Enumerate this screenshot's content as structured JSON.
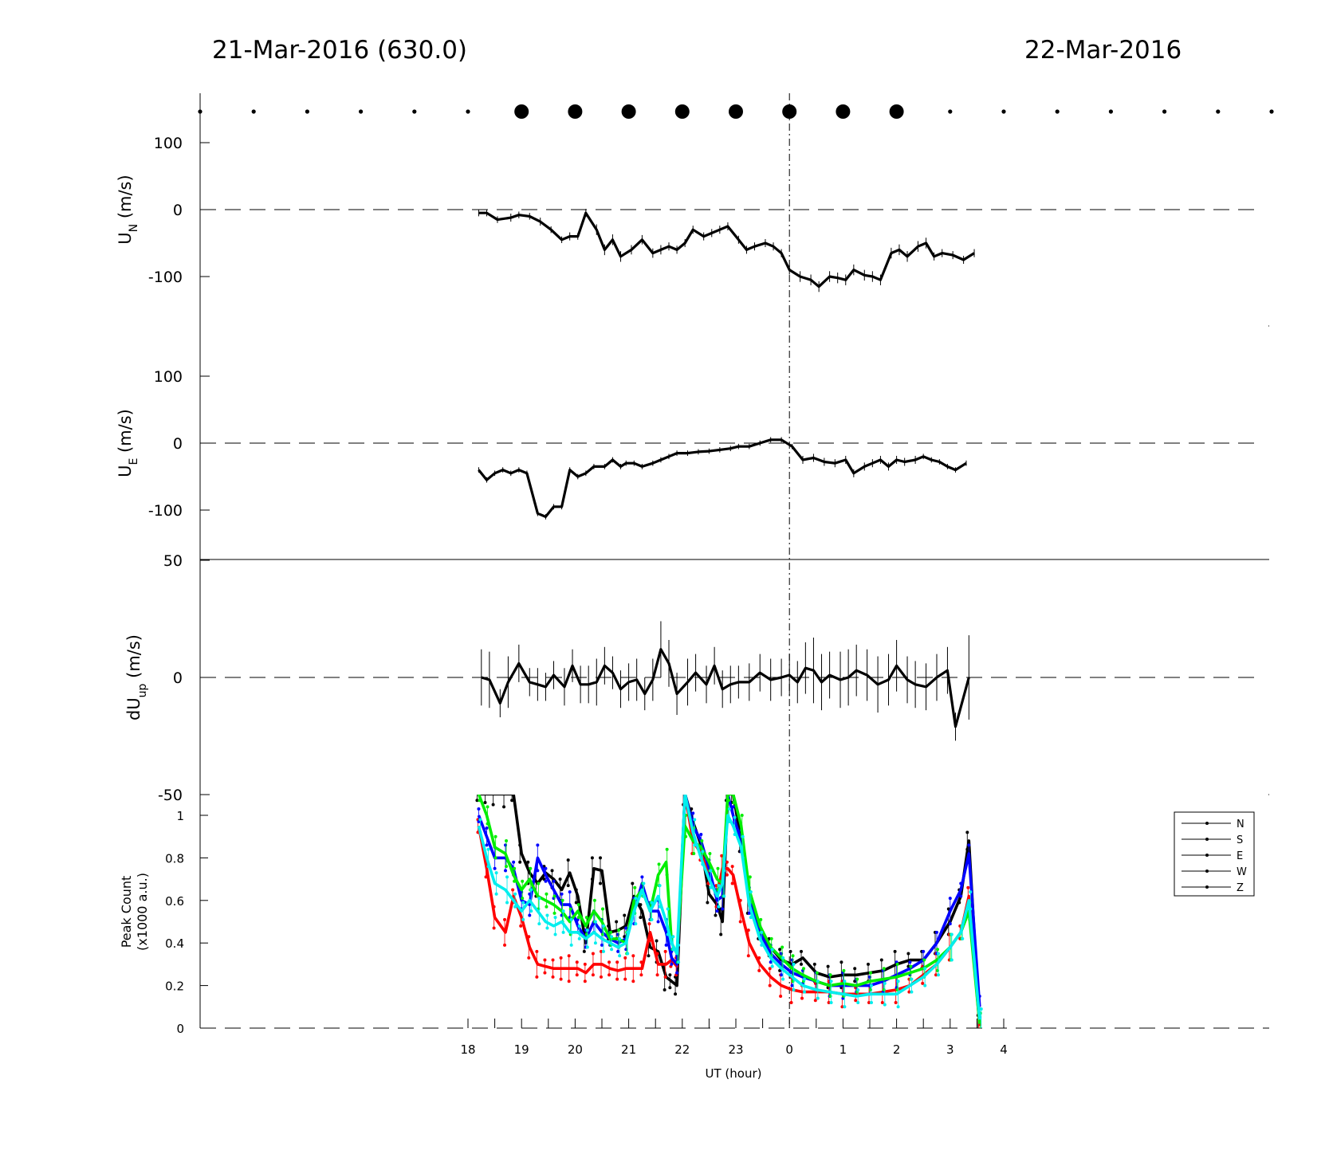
{
  "header": {
    "left_title": "21-Mar-2016 (630.0)",
    "right_title": "22-Mar-2016"
  },
  "chart_data": [
    {
      "type": "scatter",
      "name": "cloud-cover-dots",
      "x": [
        13,
        14,
        15,
        16,
        17,
        18,
        19,
        20,
        21,
        22,
        23,
        24,
        25,
        26,
        27,
        28,
        29,
        30,
        31,
        32,
        33
      ],
      "marker_size": [
        "small",
        "small",
        "small",
        "small",
        "small",
        "small",
        "large",
        "large",
        "large",
        "large",
        "large",
        "large",
        "large",
        "large",
        "small",
        "small",
        "small",
        "small",
        "small",
        "small",
        "small"
      ]
    },
    {
      "type": "line",
      "ylabel": "U",
      "ylabel_sub": "N",
      "ylabel_unit": "(m/s)",
      "yticks": [
        100,
        0,
        -100
      ],
      "ylim": [
        -175,
        155
      ],
      "x": [
        18.2,
        18.35,
        18.55,
        18.8,
        18.95,
        19.15,
        19.35,
        19.55,
        19.75,
        19.9,
        20.05,
        20.2,
        20.4,
        20.55,
        20.7,
        20.85,
        21.05,
        21.25,
        21.45,
        21.6,
        21.75,
        21.9,
        22.05,
        22.2,
        22.4,
        22.55,
        22.7,
        22.85,
        23.05,
        23.2,
        23.35,
        23.55,
        23.7,
        23.85,
        24.0,
        24.2,
        24.4,
        24.55,
        24.75,
        24.9,
        25.05,
        25.2,
        25.4,
        25.55,
        25.7,
        25.9,
        26.05,
        26.2,
        26.4,
        26.55,
        26.7,
        26.85,
        27.05,
        27.25,
        27.45
      ],
      "y": [
        -5,
        -5,
        -15,
        -12,
        -8,
        -10,
        -18,
        -30,
        -45,
        -40,
        -40,
        -5,
        -30,
        -60,
        -45,
        -70,
        -60,
        -45,
        -65,
        -60,
        -55,
        -60,
        -50,
        -30,
        -40,
        -35,
        -30,
        -25,
        -45,
        -60,
        -55,
        -50,
        -55,
        -65,
        -90,
        -100,
        -105,
        -115,
        -100,
        -102,
        -105,
        -90,
        -98,
        -100,
        -105,
        -65,
        -60,
        -70,
        -55,
        -50,
        -70,
        -65,
        -68,
        -75,
        -65
      ],
      "err": [
        5,
        5,
        5,
        6,
        5,
        5,
        6,
        5,
        5,
        6,
        5,
        6,
        8,
        8,
        8,
        8,
        7,
        7,
        7,
        7,
        6,
        6,
        6,
        6,
        6,
        6,
        6,
        6,
        6,
        6,
        6,
        6,
        6,
        6,
        7,
        8,
        8,
        8,
        8,
        8,
        8,
        8,
        8,
        8,
        8,
        8,
        8,
        8,
        8,
        8,
        6,
        6,
        6,
        6,
        6
      ]
    },
    {
      "type": "line",
      "ylabel": "U",
      "ylabel_sub": "E",
      "ylabel_unit": "(m/s)",
      "yticks": [
        100,
        0,
        -100
      ],
      "ylim": [
        -175,
        155
      ],
      "x": [
        18.2,
        18.35,
        18.5,
        18.65,
        18.8,
        18.95,
        19.1,
        19.3,
        19.45,
        19.6,
        19.75,
        19.9,
        20.05,
        20.2,
        20.35,
        20.55,
        20.7,
        20.85,
        20.95,
        21.1,
        21.25,
        21.45,
        21.6,
        21.75,
        21.9,
        22.1,
        22.3,
        22.5,
        22.7,
        22.9,
        23.05,
        23.25,
        23.45,
        23.65,
        23.85,
        24.05,
        24.25,
        24.45,
        24.65,
        24.85,
        25.05,
        25.2,
        25.4,
        25.55,
        25.7,
        25.85,
        26.0,
        26.15,
        26.35,
        26.5,
        26.65,
        26.8,
        26.95,
        27.1,
        27.3
      ],
      "y": [
        -40,
        -55,
        -45,
        -40,
        -45,
        -40,
        -45,
        -105,
        -110,
        -95,
        -95,
        -40,
        -50,
        -45,
        -35,
        -35,
        -25,
        -35,
        -30,
        -30,
        -35,
        -30,
        -25,
        -20,
        -15,
        -15,
        -13,
        -12,
        -10,
        -8,
        -5,
        -5,
        0,
        5,
        5,
        -5,
        -25,
        -22,
        -28,
        -30,
        -25,
        -45,
        -35,
        -30,
        -25,
        -35,
        -25,
        -28,
        -25,
        -20,
        -25,
        -28,
        -35,
        -40,
        -30
      ],
      "err": [
        4,
        4,
        4,
        4,
        4,
        4,
        4,
        4,
        4,
        4,
        4,
        4,
        4,
        4,
        4,
        4,
        4,
        4,
        4,
        4,
        4,
        4,
        4,
        4,
        4,
        4,
        4,
        4,
        4,
        4,
        4,
        4,
        4,
        4,
        4,
        4,
        6,
        6,
        6,
        6,
        6,
        6,
        6,
        6,
        6,
        6,
        6,
        6,
        6,
        4,
        4,
        4,
        4,
        4,
        4
      ]
    },
    {
      "type": "line",
      "ylabel": "dU",
      "ylabel_sub": "up",
      "ylabel_unit": "(m/s)",
      "yticks": [
        50,
        0,
        -50
      ],
      "ylim": [
        -50,
        50
      ],
      "x": [
        18.25,
        18.4,
        18.6,
        18.75,
        18.95,
        19.15,
        19.3,
        19.45,
        19.6,
        19.8,
        19.95,
        20.1,
        20.25,
        20.4,
        20.55,
        20.7,
        20.85,
        21.0,
        21.15,
        21.3,
        21.45,
        21.6,
        21.75,
        21.9,
        22.1,
        22.25,
        22.45,
        22.6,
        22.75,
        22.9,
        23.05,
        23.25,
        23.45,
        23.65,
        23.85,
        24.0,
        24.15,
        24.3,
        24.45,
        24.6,
        24.75,
        24.95,
        25.1,
        25.25,
        25.45,
        25.65,
        25.85,
        26.0,
        26.2,
        26.35,
        26.55,
        26.75,
        26.95,
        27.1,
        27.35
      ],
      "y": [
        0,
        -1,
        -11,
        -2,
        6,
        -2,
        -3,
        -4,
        1,
        -4,
        5,
        -3,
        -3,
        -2,
        5,
        2,
        -5,
        -2,
        -1,
        -7,
        -1,
        12,
        6,
        -7,
        -2,
        2,
        -3,
        5,
        -5,
        -3,
        -2,
        -2,
        2,
        -1,
        0,
        1,
        -2,
        4,
        3,
        -2,
        1,
        -1,
        0,
        3,
        1,
        -3,
        -1,
        5,
        -1,
        -3,
        -4,
        0,
        3,
        -21,
        0
      ],
      "err": [
        12,
        12,
        6,
        11,
        8,
        6,
        7,
        6,
        6,
        8,
        7,
        8,
        8,
        10,
        8,
        7,
        8,
        8,
        9,
        7,
        9,
        12,
        10,
        9,
        10,
        8,
        8,
        8,
        8,
        8,
        7,
        8,
        8,
        9,
        8,
        9,
        9,
        11,
        14,
        12,
        10,
        12,
        12,
        11,
        11,
        12,
        11,
        11,
        10,
        10,
        10,
        10,
        10,
        6,
        18
      ]
    },
    {
      "type": "line",
      "ylabel": "Peak Count",
      "ylabel_unit": "(x1000 a.u.)",
      "yticks": [
        1,
        0.8,
        0.6,
        0.4,
        0.2,
        0
      ],
      "ylim": [
        0,
        1.1
      ],
      "xlabel": "UT (hour)",
      "xticks": [
        "18",
        "19",
        "20",
        "21",
        "22",
        "23",
        "0",
        "1",
        "2",
        "3",
        "4"
      ],
      "x": [
        18.2,
        18.35,
        18.5,
        18.7,
        18.85,
        19.0,
        19.15,
        19.3,
        19.45,
        19.6,
        19.75,
        19.9,
        20.05,
        20.2,
        20.35,
        20.5,
        20.65,
        20.8,
        20.95,
        21.1,
        21.25,
        21.4,
        21.55,
        21.7,
        21.8,
        21.9,
        22.05,
        22.2,
        22.35,
        22.5,
        22.65,
        22.75,
        22.85,
        22.95,
        23.1,
        23.25,
        23.45,
        23.65,
        23.85,
        24.05,
        24.25,
        24.5,
        24.75,
        25.0,
        25.25,
        25.5,
        25.75,
        26.0,
        26.25,
        26.5,
        26.75,
        27.0,
        27.2,
        27.35,
        27.55
      ],
      "series": [
        {
          "name": "N",
          "color": "#000000",
          "values": [
            1.1,
            1.1,
            1.1,
            1.1,
            1.1,
            0.82,
            0.73,
            0.68,
            0.73,
            0.7,
            0.65,
            0.73,
            0.62,
            0.4,
            0.75,
            0.74,
            0.45,
            0.46,
            0.48,
            0.62,
            0.55,
            0.38,
            0.36,
            0.24,
            0.22,
            0.2,
            1.1,
            0.97,
            0.86,
            0.63,
            0.58,
            0.5,
            1.1,
            1.1,
            0.88,
            0.6,
            0.45,
            0.38,
            0.32,
            0.3,
            0.33,
            0.26,
            0.24,
            0.25,
            0.25,
            0.26,
            0.27,
            0.3,
            0.32,
            0.32,
            0.4,
            0.5,
            0.62,
            0.88,
            0.01
          ]
        },
        {
          "name": "S",
          "color": "#ff0000",
          "values": [
            0.95,
            0.75,
            0.52,
            0.45,
            0.62,
            0.52,
            0.38,
            0.3,
            0.29,
            0.28,
            0.28,
            0.28,
            0.28,
            0.26,
            0.3,
            0.3,
            0.28,
            0.27,
            0.28,
            0.28,
            0.28,
            0.45,
            0.3,
            0.3,
            0.32,
            0.29,
            1.1,
            0.88,
            0.82,
            0.72,
            0.62,
            0.75,
            0.75,
            0.72,
            0.55,
            0.4,
            0.3,
            0.24,
            0.2,
            0.18,
            0.17,
            0.17,
            0.17,
            0.16,
            0.16,
            0.16,
            0.17,
            0.18,
            0.2,
            0.25,
            0.3,
            0.38,
            0.45,
            0.62,
            0.01
          ]
        },
        {
          "name": "E",
          "color": "#0000ff",
          "values": [
            1.0,
            0.9,
            0.8,
            0.8,
            0.75,
            0.6,
            0.58,
            0.8,
            0.72,
            0.65,
            0.58,
            0.58,
            0.48,
            0.42,
            0.5,
            0.45,
            0.42,
            0.4,
            0.42,
            0.55,
            0.68,
            0.55,
            0.55,
            0.45,
            0.33,
            0.3,
            1.1,
            0.95,
            0.88,
            0.75,
            0.6,
            0.62,
            1.1,
            1.0,
            0.88,
            0.6,
            0.45,
            0.35,
            0.3,
            0.26,
            0.24,
            0.22,
            0.2,
            0.2,
            0.2,
            0.2,
            0.22,
            0.25,
            0.28,
            0.32,
            0.4,
            0.55,
            0.65,
            0.82,
            0.1
          ]
        },
        {
          "name": "W",
          "color": "#00ee00",
          "values": [
            1.1,
            1.0,
            0.85,
            0.82,
            0.72,
            0.65,
            0.7,
            0.62,
            0.6,
            0.58,
            0.55,
            0.5,
            0.55,
            0.48,
            0.55,
            0.5,
            0.42,
            0.42,
            0.4,
            0.6,
            0.65,
            0.55,
            0.72,
            0.78,
            0.4,
            0.35,
            0.95,
            0.88,
            0.85,
            0.78,
            0.7,
            0.68,
            1.1,
            1.1,
            0.95,
            0.65,
            0.48,
            0.38,
            0.33,
            0.28,
            0.25,
            0.22,
            0.2,
            0.21,
            0.2,
            0.22,
            0.23,
            0.24,
            0.26,
            0.28,
            0.32,
            0.38,
            0.45,
            0.55,
            0.02
          ]
        },
        {
          "name": "Z",
          "color": "#00eeee",
          "values": [
            0.95,
            0.8,
            0.68,
            0.65,
            0.6,
            0.55,
            0.6,
            0.55,
            0.5,
            0.48,
            0.5,
            0.45,
            0.45,
            0.42,
            0.45,
            0.42,
            0.4,
            0.38,
            0.4,
            0.55,
            0.65,
            0.55,
            0.62,
            0.5,
            0.4,
            0.35,
            1.1,
            0.92,
            0.8,
            0.7,
            0.62,
            0.68,
            1.0,
            0.95,
            0.85,
            0.58,
            0.42,
            0.33,
            0.28,
            0.24,
            0.2,
            0.18,
            0.17,
            0.16,
            0.15,
            0.16,
            0.16,
            0.16,
            0.2,
            0.24,
            0.3,
            0.38,
            0.45,
            0.6,
            0.04
          ]
        }
      ],
      "legend_position": "top-right"
    }
  ]
}
